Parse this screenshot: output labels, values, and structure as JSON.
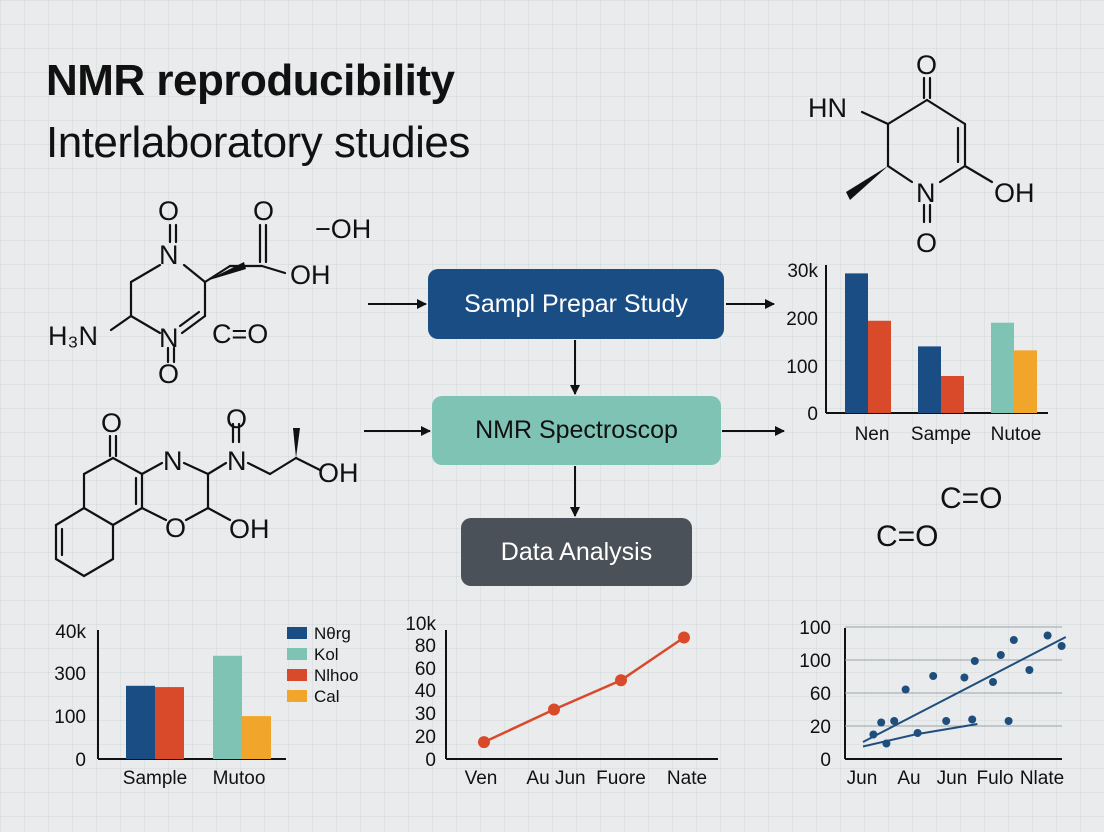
{
  "title": {
    "line1": "NMR reproducibility",
    "line2": "Interlaboratory studies"
  },
  "flow": {
    "step1": "Sampl Prepar Study",
    "step2": "NMR Spectroscop",
    "step3": "Data Analysis"
  },
  "molecules": {
    "m1": {
      "o_top1": "O",
      "o_top2": "O",
      "oh_side": "−OH",
      "n_top": "N",
      "oh": "OH",
      "h3n": "H₃N",
      "n_bottom": "N",
      "co": "C=O",
      "o_bottom": "O"
    },
    "m2": {
      "o_ketone": "O",
      "n1": "N",
      "o_top": "O",
      "n2": "N",
      "oh_right": "OH",
      "o_ring": "O",
      "oh_bottom": "OH"
    },
    "m3": {
      "o_top": "O",
      "hn": "HN",
      "n": "N",
      "oh": "OH",
      "o_bottom": "O"
    },
    "free": {
      "co1": "C=O",
      "co2": "C=O"
    }
  },
  "colors": {
    "navy": "#1a4d84",
    "red": "#d94a2b",
    "teal": "#7fc3b5",
    "orange": "#f1a52a",
    "dark": "#4b5158",
    "scatter": "#1f4e7d"
  },
  "chart_data": [
    {
      "type": "bar",
      "categories": [
        "Nen",
        "Sampe",
        "Nutoe"
      ],
      "y_tick_labels": [
        "0",
        "100",
        "200",
        "30k"
      ],
      "ylim": [
        0,
        300
      ],
      "groups": [
        {
          "category": "Nen",
          "bars": [
            {
              "color": "#1a4d84",
              "value": 283
            },
            {
              "color": "#d94a2b",
              "value": 187
            }
          ]
        },
        {
          "category": "Sampe",
          "bars": [
            {
              "color": "#1a4d84",
              "value": 135
            },
            {
              "color": "#d94a2b",
              "value": 75
            }
          ]
        },
        {
          "category": "Nutoe",
          "bars": [
            {
              "color": "#7fc3b5",
              "value": 183
            },
            {
              "color": "#f1a52a",
              "value": 127
            }
          ]
        }
      ]
    },
    {
      "type": "bar",
      "categories": [
        "Sample",
        "Mutoo"
      ],
      "y_tick_labels": [
        "0",
        "100",
        "300",
        "40k"
      ],
      "ylim": [
        0,
        400
      ],
      "legend": [
        "Nθrg",
        "Kol",
        "Nlhoo",
        "Cal"
      ],
      "legend_position": "top-right",
      "groups": [
        {
          "category": "Sample",
          "bars": [
            {
              "color": "#1a4d84",
              "value": 227
            },
            {
              "color": "#d94a2b",
              "value": 223
            }
          ]
        },
        {
          "category": "Mutoo",
          "bars": [
            {
              "color": "#7fc3b5",
              "value": 320
            },
            {
              "color": "#f1a52a",
              "value": 133
            }
          ]
        }
      ]
    },
    {
      "type": "line",
      "categories": [
        "Ven",
        "Au Jun",
        "Fuore",
        "Nate"
      ],
      "y_tick_labels": [
        "0",
        "20",
        "30",
        "40",
        "60",
        "80",
        "10k"
      ],
      "ylim": [
        0,
        6
      ],
      "values": [
        0.75,
        2.2,
        3.5,
        5.4
      ],
      "color": "#d94a2b"
    },
    {
      "type": "scatter",
      "categories": [
        "Jun",
        "Au",
        "Jun",
        "Fulo",
        "Nlate"
      ],
      "y_tick_labels": [
        "0",
        "20",
        "60",
        "100",
        "100"
      ],
      "ylim": [
        0,
        4
      ],
      "points": [
        [
          0.2,
          0.55
        ],
        [
          0.35,
          0.95
        ],
        [
          0.45,
          0.25
        ],
        [
          0.6,
          1.0
        ],
        [
          0.82,
          2.05
        ],
        [
          1.05,
          0.6
        ],
        [
          1.35,
          2.5
        ],
        [
          1.6,
          1.0
        ],
        [
          1.95,
          2.45
        ],
        [
          2.1,
          1.05
        ],
        [
          2.15,
          3.0
        ],
        [
          2.5,
          2.3
        ],
        [
          2.65,
          3.2
        ],
        [
          2.8,
          1.0
        ],
        [
          2.9,
          3.7
        ],
        [
          3.2,
          2.7
        ],
        [
          3.55,
          3.85
        ],
        [
          3.82,
          3.5
        ]
      ],
      "trend_lines": [
        [
          [
            0.0,
            0.3
          ],
          [
            3.9,
            3.8
          ]
        ],
        [
          [
            0.0,
            0.15
          ],
          [
            1.0,
            0.55
          ],
          [
            2.2,
            0.9
          ]
        ]
      ],
      "color": "#1f4e7d"
    }
  ]
}
